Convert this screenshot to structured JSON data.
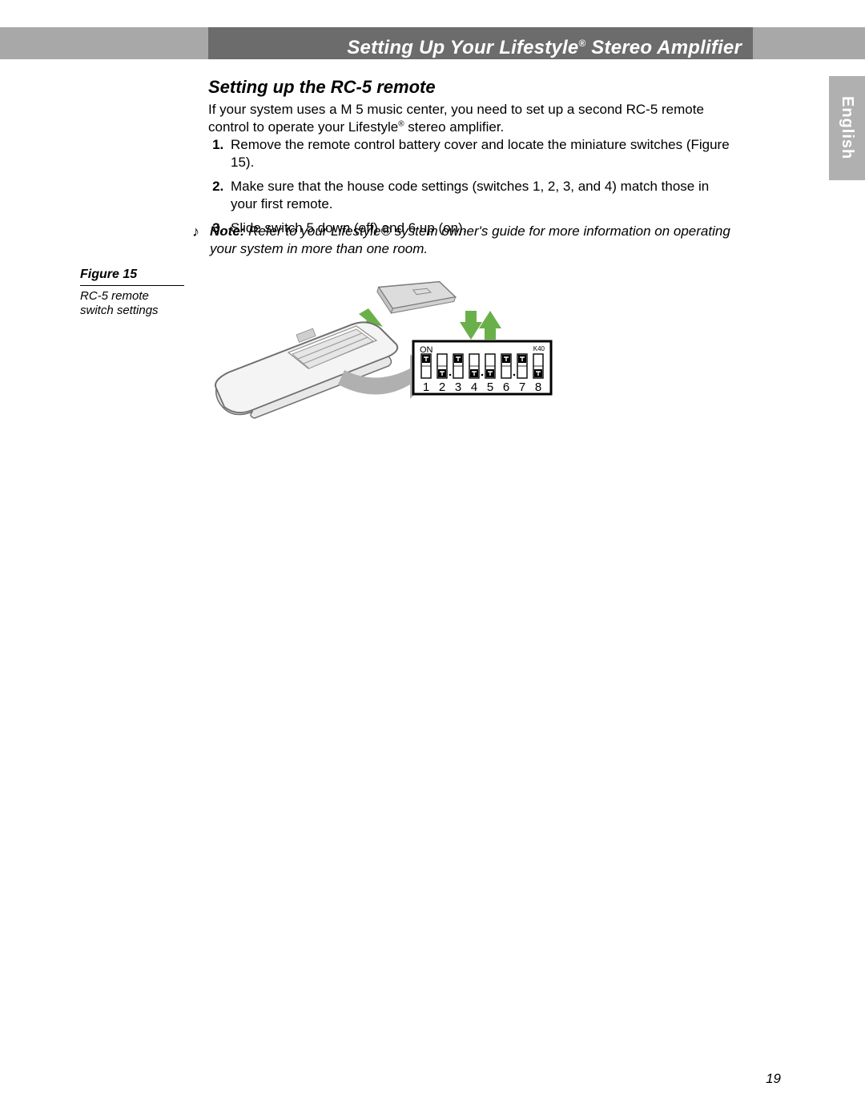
{
  "header": {
    "title_pre": "Setting Up Your Lifestyle",
    "title_post": " Stereo Amplifier",
    "sup": "®"
  },
  "language_tab": "English",
  "section_title": "Setting up the RC-5 remote",
  "intro": {
    "part1": "If your system uses a M",
    "part2": " 5 music center, you need to set up a second RC-5 remote control to operate your Lifestyle",
    "sup": "®",
    "part3": " stereo amplifier."
  },
  "steps": [
    "Remove the remote control battery cover and locate the miniature switches (Figure 15).",
    "Make sure that the house code settings (switches 1, 2, 3, and 4) match those in your first remote.",
    "Slide switch 5 down (off) and 6 up (on)."
  ],
  "note": {
    "label": "Note:",
    "text": " Refer to your Lifestyle® system owner's guide for more information on operating your system in more than one room."
  },
  "figure": {
    "number": "Figure 15",
    "caption": "RC-5 remote switch settings",
    "dip": {
      "on_label": "ON",
      "right_label": "K40",
      "numbers": [
        "1",
        "2",
        "3",
        "4",
        "5",
        "6",
        "7",
        "8"
      ],
      "positions": [
        "up",
        "down",
        "up",
        "down",
        "down",
        "up",
        "up",
        "down"
      ],
      "frame_stroke": "#000000",
      "body_fill": "#ffffff",
      "switch_fill": "#000000",
      "label_fontsize": 12,
      "num_fontsize": 15
    },
    "remote": {
      "body_fill": "#f4f4f4",
      "body_stroke": "#6e6e6e",
      "cover_fill": "#dcdcdc",
      "cover_stroke": "#7a7a7a",
      "arrow_fill": "#b0b0b0",
      "green_arrow_fill": "#6ab04a"
    }
  },
  "page_number": "19"
}
